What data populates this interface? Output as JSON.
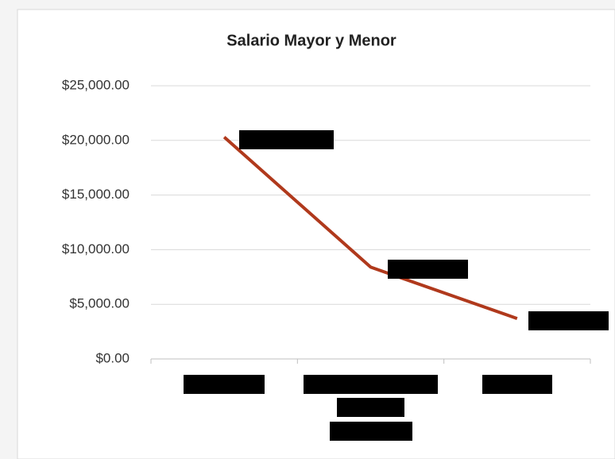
{
  "chart_data": {
    "type": "line",
    "title": "Salario Mayor y Menor",
    "categories": [
      null,
      null,
      null
    ],
    "values": [
      20300,
      8400,
      3700
    ],
    "color": "#b0391c",
    "ylim": [
      0,
      25000
    ],
    "yticks": [
      {
        "value": 0,
        "label": "$0.00"
      },
      {
        "value": 5000,
        "label": "$5,000.00"
      },
      {
        "value": 10000,
        "label": "$10,000.00"
      },
      {
        "value": 15000,
        "label": "$15,000.00"
      },
      {
        "value": 20000,
        "label": "$20,000.00"
      },
      {
        "value": 25000,
        "label": "$25,000.00"
      }
    ],
    "grid": true
  }
}
